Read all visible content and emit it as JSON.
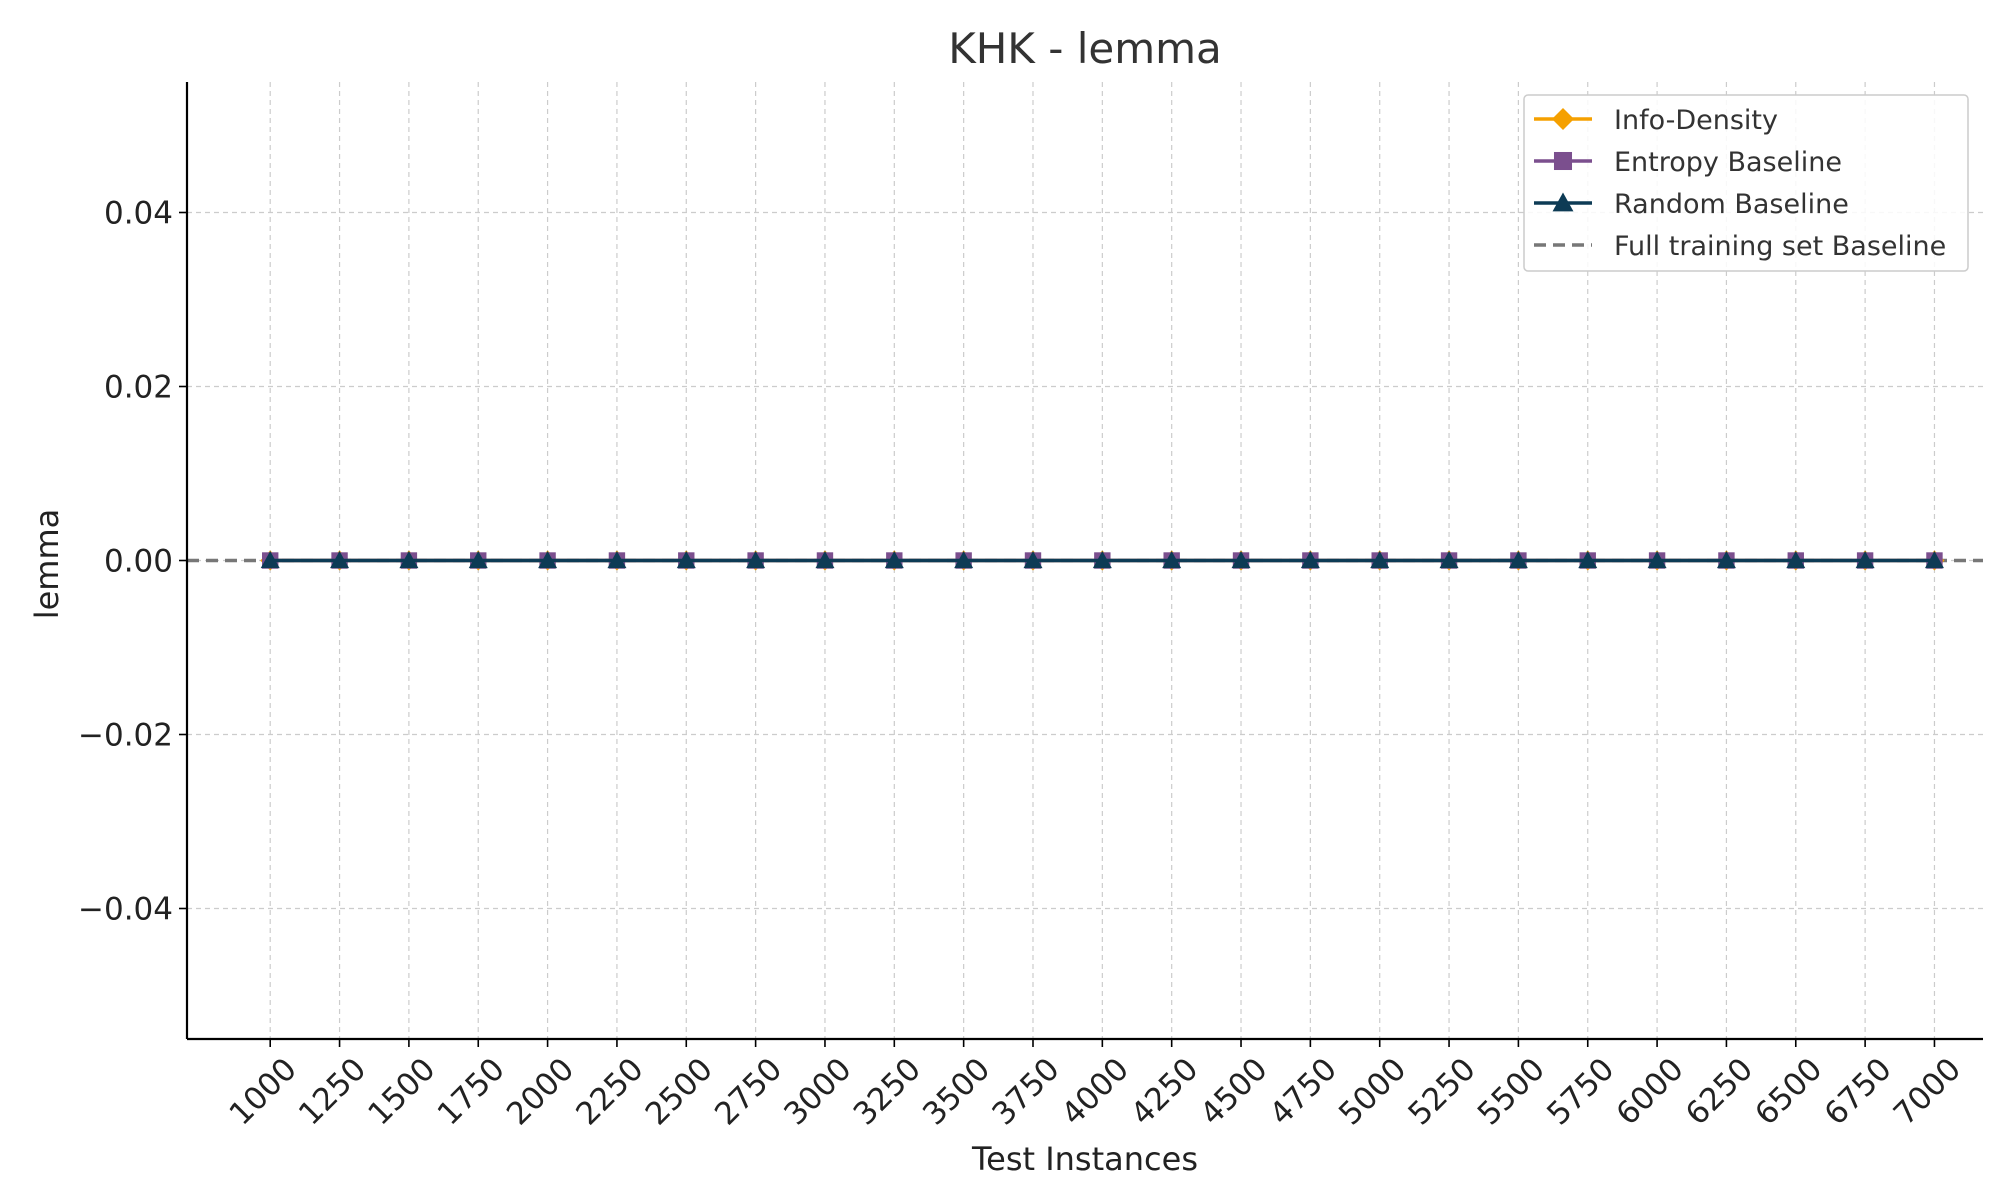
{
  "chart_data": {
    "type": "line",
    "title": "KHK - lemma",
    "xlabel": "Test Instances",
    "ylabel": "lemma",
    "x": [
      1000,
      1250,
      1500,
      1750,
      2000,
      2250,
      2500,
      2750,
      3000,
      3250,
      3500,
      3750,
      4000,
      4250,
      4500,
      4750,
      5000,
      5250,
      5500,
      5750,
      6000,
      6250,
      6500,
      6750,
      7000
    ],
    "x_tick_labels": [
      "1000",
      "1250",
      "1500",
      "1750",
      "2000",
      "2250",
      "2500",
      "2750",
      "3000",
      "3250",
      "3500",
      "3750",
      "4000",
      "4250",
      "4500",
      "4750",
      "5000",
      "5250",
      "5500",
      "5750",
      "6000",
      "6250",
      "6500",
      "6750",
      "7000"
    ],
    "xlim": [
      700,
      7175
    ],
    "ylim": [
      -0.055,
      0.055
    ],
    "y_ticks": [
      -0.04,
      -0.02,
      0.0,
      0.02,
      0.04
    ],
    "y_tick_labels": [
      "−0.04",
      "−0.02",
      "0.00",
      "0.02",
      "0.04"
    ],
    "grid": true,
    "legend_position": "top-right",
    "series": [
      {
        "name": "Info-Density",
        "color": "#F5A000",
        "marker": "diamond",
        "values": [
          0,
          0,
          0,
          0,
          0,
          0,
          0,
          0,
          0,
          0,
          0,
          0,
          0,
          0,
          0,
          0,
          0,
          0,
          0,
          0,
          0,
          0,
          0,
          0,
          0
        ]
      },
      {
        "name": "Entropy Baseline",
        "color": "#7B4F8E",
        "marker": "square",
        "values": [
          0,
          0,
          0,
          0,
          0,
          0,
          0,
          0,
          0,
          0,
          0,
          0,
          0,
          0,
          0,
          0,
          0,
          0,
          0,
          0,
          0,
          0,
          0,
          0,
          0
        ]
      },
      {
        "name": "Random Baseline",
        "color": "#0D3B55",
        "marker": "triangle",
        "values": [
          0,
          0,
          0,
          0,
          0,
          0,
          0,
          0,
          0,
          0,
          0,
          0,
          0,
          0,
          0,
          0,
          0,
          0,
          0,
          0,
          0,
          0,
          0,
          0,
          0
        ]
      }
    ],
    "baselines": [
      {
        "name": "Full training set Baseline",
        "color": "#777777",
        "style": "dashed",
        "value": 0.0
      }
    ]
  }
}
